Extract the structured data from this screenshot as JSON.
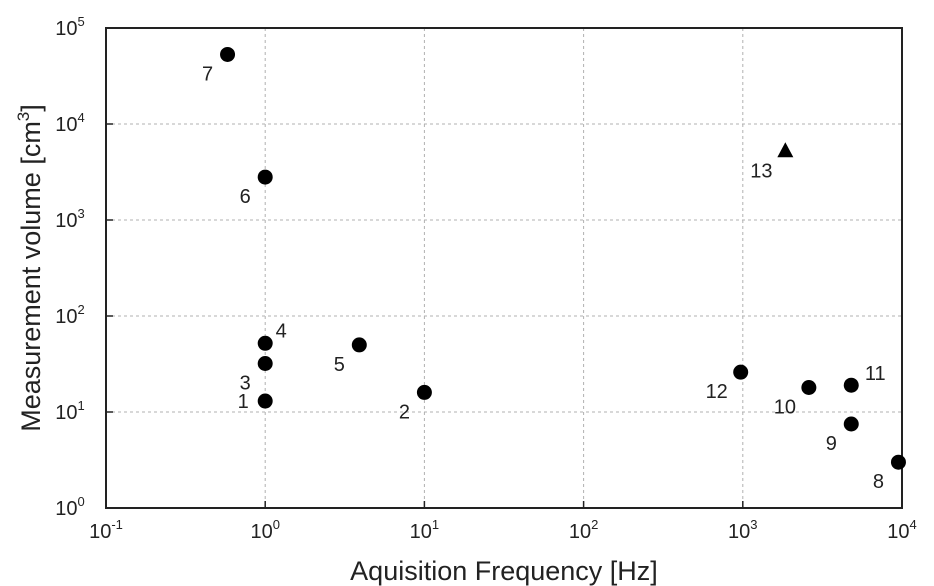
{
  "chart_data": {
    "type": "scatter",
    "title": "",
    "xlabel": "Aquisition Frequency [Hz]",
    "ylabel_main": "Measurement  volume [cm",
    "ylabel_sup": "3",
    "ylabel_end": "]",
    "x_scale": "log",
    "y_scale": "log",
    "xlim": [
      0.1,
      10000
    ],
    "ylim": [
      1,
      100000
    ],
    "grid": true,
    "legend": "none",
    "x_ticks": [
      {
        "value": 0.1,
        "base": "10",
        "exp": "-1"
      },
      {
        "value": 1,
        "base": "10",
        "exp": "0"
      },
      {
        "value": 10,
        "base": "10",
        "exp": "1"
      },
      {
        "value": 100,
        "base": "10",
        "exp": "2"
      },
      {
        "value": 1000,
        "base": "10",
        "exp": "3"
      },
      {
        "value": 10000,
        "base": "10",
        "exp": "4"
      }
    ],
    "y_ticks": [
      {
        "value": 1,
        "base": "10",
        "exp": "0"
      },
      {
        "value": 10,
        "base": "10",
        "exp": "1"
      },
      {
        "value": 100,
        "base": "10",
        "exp": "2"
      },
      {
        "value": 1000,
        "base": "10",
        "exp": "3"
      },
      {
        "value": 10000,
        "base": "10",
        "exp": "4"
      },
      {
        "value": 100000,
        "base": "10",
        "exp": "5"
      }
    ],
    "marker_color": "#000000",
    "points": [
      {
        "label": "1",
        "x": 1.0,
        "y": 13,
        "marker": "circle",
        "label_pos": "left"
      },
      {
        "label": "2",
        "x": 10,
        "y": 16,
        "marker": "circle",
        "label_pos": "bottom-left"
      },
      {
        "label": "3",
        "x": 1.0,
        "y": 32,
        "marker": "circle",
        "label_pos": "bottom-left"
      },
      {
        "label": "4",
        "x": 1.0,
        "y": 52,
        "marker": "circle",
        "label_pos": "top-right"
      },
      {
        "label": "5",
        "x": 3.9,
        "y": 50,
        "marker": "circle",
        "label_pos": "bottom-left"
      },
      {
        "label": "6",
        "x": 1.0,
        "y": 2800,
        "marker": "circle",
        "label_pos": "bottom-left"
      },
      {
        "label": "7",
        "x": 0.58,
        "y": 53000,
        "marker": "circle",
        "label_pos": "bottom-left"
      },
      {
        "label": "8",
        "x": 9500,
        "y": 3.0,
        "marker": "circle",
        "label_pos": "bottom-left"
      },
      {
        "label": "9",
        "x": 4800,
        "y": 7.5,
        "marker": "circle",
        "label_pos": "bottom-left"
      },
      {
        "label": "10",
        "x": 2600,
        "y": 18,
        "marker": "circle",
        "label_pos": "bottom-left"
      },
      {
        "label": "11",
        "x": 4800,
        "y": 19,
        "marker": "circle",
        "label_pos": "right"
      },
      {
        "label": "12",
        "x": 970,
        "y": 26,
        "marker": "circle",
        "label_pos": "bottom-left"
      },
      {
        "label": "13",
        "x": 1850,
        "y": 5200,
        "marker": "triangle",
        "label_pos": "bottom-left"
      }
    ]
  }
}
